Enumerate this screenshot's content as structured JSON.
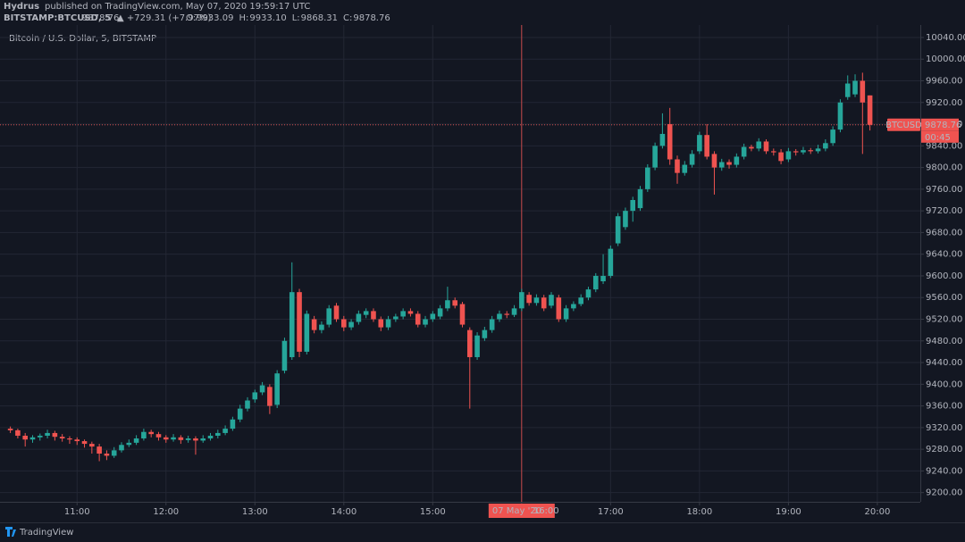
{
  "header": {
    "publisher": "Hydrus",
    "published": "published on TradingView.com, May 07, 2020 19:59:17 UTC",
    "symbol": "BITSTAMP:BTCUSD, 5",
    "last": "9878.76",
    "change": "▲ +729.31 (+7.97%)",
    "ohlc": [
      {
        "key": "O:",
        "value": "9933.09"
      },
      {
        "key": "H:",
        "value": "9933.10"
      },
      {
        "key": "L:",
        "value": "9868.31"
      },
      {
        "key": "C:",
        "value": "9878.76"
      }
    ]
  },
  "footer": {
    "brand": "TradingView"
  },
  "chart_data": {
    "type": "candlestick",
    "title": "Bitcoin / U.S. Dollar, 5, BITSTAMP",
    "up_color": "#26a69a",
    "down_color": "#ef5350",
    "grid": true,
    "xlim": [
      608,
      1229
    ],
    "ylim": [
      9183,
      10063
    ],
    "xticks": [
      {
        "value": 660,
        "label": "11:00"
      },
      {
        "value": 720,
        "label": "12:00"
      },
      {
        "value": 780,
        "label": "13:00"
      },
      {
        "value": 840,
        "label": "14:00"
      },
      {
        "value": 900,
        "label": "15:00"
      },
      {
        "value": 960,
        "label": "16:00"
      },
      {
        "value": 1020,
        "label": "17:00"
      },
      {
        "value": 1080,
        "label": "18:00"
      },
      {
        "value": 1140,
        "label": "19:00"
      },
      {
        "value": 1200,
        "label": "20:00"
      }
    ],
    "yticks": [
      {
        "value": 9200,
        "label": "9200.00"
      },
      {
        "value": 9240,
        "label": "9240.00"
      },
      {
        "value": 9280,
        "label": "9280.00"
      },
      {
        "value": 9320,
        "label": "9320.00"
      },
      {
        "value": 9360,
        "label": "9360.00"
      },
      {
        "value": 9400,
        "label": "9400.00"
      },
      {
        "value": 9440,
        "label": "9440.00"
      },
      {
        "value": 9480,
        "label": "9480.00"
      },
      {
        "value": 9520,
        "label": "9520.00"
      },
      {
        "value": 9560,
        "label": "9560.00"
      },
      {
        "value": 9600,
        "label": "9600.00"
      },
      {
        "value": 9640,
        "label": "9640.00"
      },
      {
        "value": 9680,
        "label": "9680.00"
      },
      {
        "value": 9720,
        "label": "9720.00"
      },
      {
        "value": 9760,
        "label": "9760.00"
      },
      {
        "value": 9800,
        "label": "9800.00"
      },
      {
        "value": 9840,
        "label": "9840.00"
      },
      {
        "value": 9880,
        "label": "9880.00"
      },
      {
        "value": 9920,
        "label": "9920.00"
      },
      {
        "value": 9960,
        "label": "9960.00"
      },
      {
        "value": 10000,
        "label": "10000.00"
      },
      {
        "value": 10040,
        "label": "10040.00"
      }
    ],
    "last_price": 9878.76,
    "last_price_label": "BTCUSD",
    "countdown": "00:45",
    "crosshair": {
      "x": 960,
      "date": "07 May '20",
      "time": "16:00"
    },
    "x": [
      615,
      620,
      625,
      630,
      635,
      640,
      645,
      650,
      655,
      660,
      665,
      670,
      675,
      680,
      685,
      690,
      695,
      700,
      705,
      710,
      715,
      720,
      725,
      730,
      735,
      740,
      745,
      750,
      755,
      760,
      765,
      770,
      775,
      780,
      785,
      790,
      795,
      800,
      805,
      810,
      815,
      820,
      825,
      830,
      835,
      840,
      845,
      850,
      855,
      860,
      865,
      870,
      875,
      880,
      885,
      890,
      895,
      900,
      905,
      910,
      915,
      920,
      925,
      930,
      935,
      940,
      945,
      950,
      955,
      960,
      965,
      970,
      975,
      980,
      985,
      990,
      995,
      1000,
      1005,
      1010,
      1015,
      1020,
      1025,
      1030,
      1035,
      1040,
      1045,
      1050,
      1055,
      1060,
      1065,
      1070,
      1075,
      1080,
      1085,
      1090,
      1095,
      1100,
      1105,
      1110,
      1115,
      1120,
      1125,
      1130,
      1135,
      1140,
      1145,
      1150,
      1155,
      1160,
      1165,
      1170,
      1175,
      1180,
      1185,
      1190,
      1195
    ],
    "candles": [
      [
        9318,
        9322,
        9310,
        9315
      ],
      [
        9315,
        9318,
        9300,
        9305
      ],
      [
        9305,
        9310,
        9285,
        9298
      ],
      [
        9298,
        9306,
        9292,
        9302
      ],
      [
        9302,
        9309,
        9296,
        9305
      ],
      [
        9305,
        9316,
        9300,
        9310
      ],
      [
        9310,
        9314,
        9296,
        9303
      ],
      [
        9303,
        9308,
        9294,
        9300
      ],
      [
        9300,
        9304,
        9290,
        9298
      ],
      [
        9298,
        9302,
        9288,
        9295
      ],
      [
        9295,
        9298,
        9283,
        9290
      ],
      [
        9290,
        9294,
        9272,
        9285
      ],
      [
        9285,
        9290,
        9258,
        9272
      ],
      [
        9272,
        9278,
        9260,
        9268
      ],
      [
        9268,
        9284,
        9264,
        9278
      ],
      [
        9278,
        9293,
        9274,
        9288
      ],
      [
        9288,
        9298,
        9284,
        9292
      ],
      [
        9292,
        9306,
        9288,
        9300
      ],
      [
        9300,
        9318,
        9296,
        9312
      ],
      [
        9312,
        9316,
        9302,
        9308
      ],
      [
        9308,
        9312,
        9296,
        9302
      ],
      [
        9302,
        9306,
        9292,
        9298
      ],
      [
        9298,
        9308,
        9294,
        9302
      ],
      [
        9302,
        9306,
        9290,
        9297
      ],
      [
        9297,
        9305,
        9292,
        9300
      ],
      [
        9300,
        9304,
        9270,
        9296
      ],
      [
        9296,
        9306,
        9292,
        9300
      ],
      [
        9300,
        9310,
        9296,
        9305
      ],
      [
        9305,
        9316,
        9300,
        9310
      ],
      [
        9310,
        9324,
        9306,
        9318
      ],
      [
        9318,
        9340,
        9314,
        9335
      ],
      [
        9335,
        9362,
        9330,
        9355
      ],
      [
        9355,
        9376,
        9350,
        9370
      ],
      [
        9372,
        9390,
        9366,
        9385
      ],
      [
        9385,
        9404,
        9380,
        9398
      ],
      [
        9395,
        9400,
        9345,
        9360
      ],
      [
        9362,
        9426,
        9356,
        9420
      ],
      [
        9425,
        9486,
        9420,
        9480
      ],
      [
        9450,
        9625,
        9445,
        9570
      ],
      [
        9570,
        9576,
        9450,
        9460
      ],
      [
        9460,
        9536,
        9455,
        9530
      ],
      [
        9520,
        9526,
        9494,
        9500
      ],
      [
        9500,
        9516,
        9494,
        9510
      ],
      [
        9510,
        9546,
        9505,
        9540
      ],
      [
        9545,
        9550,
        9515,
        9520
      ],
      [
        9520,
        9526,
        9498,
        9505
      ],
      [
        9505,
        9520,
        9500,
        9515
      ],
      [
        9515,
        9536,
        9510,
        9530
      ],
      [
        9528,
        9540,
        9522,
        9535
      ],
      [
        9535,
        9540,
        9515,
        9520
      ],
      [
        9520,
        9525,
        9498,
        9505
      ],
      [
        9505,
        9526,
        9500,
        9520
      ],
      [
        9520,
        9530,
        9515,
        9525
      ],
      [
        9525,
        9540,
        9520,
        9535
      ],
      [
        9535,
        9540,
        9525,
        9530
      ],
      [
        9530,
        9535,
        9505,
        9510
      ],
      [
        9510,
        9526,
        9505,
        9520
      ],
      [
        9520,
        9535,
        9515,
        9530
      ],
      [
        9525,
        9546,
        9520,
        9540
      ],
      [
        9540,
        9580,
        9535,
        9555
      ],
      [
        9555,
        9560,
        9540,
        9545
      ],
      [
        9548,
        9552,
        9505,
        9510
      ],
      [
        9500,
        9505,
        9355,
        9450
      ],
      [
        9450,
        9496,
        9445,
        9490
      ],
      [
        9485,
        9506,
        9480,
        9500
      ],
      [
        9500,
        9526,
        9495,
        9520
      ],
      [
        9520,
        9536,
        9515,
        9530
      ],
      [
        9530,
        9535,
        9522,
        9528
      ],
      [
        9528,
        9546,
        9524,
        9540
      ],
      [
        9540,
        9576,
        9535,
        9570
      ],
      [
        9565,
        9570,
        9545,
        9550
      ],
      [
        9550,
        9566,
        9545,
        9560
      ],
      [
        9560,
        9565,
        9535,
        9540
      ],
      [
        9545,
        9570,
        9540,
        9565
      ],
      [
        9560,
        9565,
        9515,
        9520
      ],
      [
        9520,
        9546,
        9515,
        9540
      ],
      [
        9540,
        9553,
        9535,
        9548
      ],
      [
        9548,
        9566,
        9544,
        9560
      ],
      [
        9560,
        9580,
        9555,
        9575
      ],
      [
        9575,
        9605,
        9570,
        9600
      ],
      [
        9590,
        9640,
        9585,
        9600
      ],
      [
        9600,
        9656,
        9596,
        9650
      ],
      [
        9660,
        9716,
        9655,
        9710
      ],
      [
        9690,
        9726,
        9685,
        9720
      ],
      [
        9720,
        9746,
        9700,
        9740
      ],
      [
        9725,
        9766,
        9720,
        9760
      ],
      [
        9760,
        9806,
        9755,
        9800
      ],
      [
        9800,
        9846,
        9795,
        9840
      ],
      [
        9840,
        9900,
        9835,
        9862
      ],
      [
        9880,
        9910,
        9805,
        9815
      ],
      [
        9815,
        9822,
        9770,
        9790
      ],
      [
        9790,
        9812,
        9785,
        9805
      ],
      [
        9805,
        9832,
        9800,
        9825
      ],
      [
        9830,
        9866,
        9825,
        9860
      ],
      [
        9860,
        9880,
        9815,
        9820
      ],
      [
        9825,
        9830,
        9750,
        9800
      ],
      [
        9800,
        9816,
        9794,
        9810
      ],
      [
        9810,
        9815,
        9798,
        9805
      ],
      [
        9805,
        9826,
        9800,
        9820
      ],
      [
        9820,
        9844,
        9815,
        9838
      ],
      [
        9838,
        9842,
        9830,
        9835
      ],
      [
        9835,
        9854,
        9830,
        9848
      ],
      [
        9848,
        9852,
        9825,
        9830
      ],
      [
        9830,
        9835,
        9822,
        9828
      ],
      [
        9828,
        9834,
        9806,
        9812
      ],
      [
        9815,
        9836,
        9810,
        9830
      ],
      [
        9830,
        9834,
        9822,
        9828
      ],
      [
        9828,
        9838,
        9824,
        9832
      ],
      [
        9832,
        9836,
        9825,
        9830
      ],
      [
        9830,
        9842,
        9826,
        9835
      ],
      [
        9835,
        9852,
        9830,
        9845
      ],
      [
        9845,
        9876,
        9840,
        9870
      ],
      [
        9870,
        9926,
        9865,
        9920
      ],
      [
        9930,
        9970,
        9925,
        9955
      ],
      [
        9935,
        9972,
        9930,
        9960
      ],
      [
        9960,
        9975,
        9825,
        9920
      ],
      [
        9933.09,
        9933.1,
        9868.31,
        9878.76
      ]
    ]
  }
}
